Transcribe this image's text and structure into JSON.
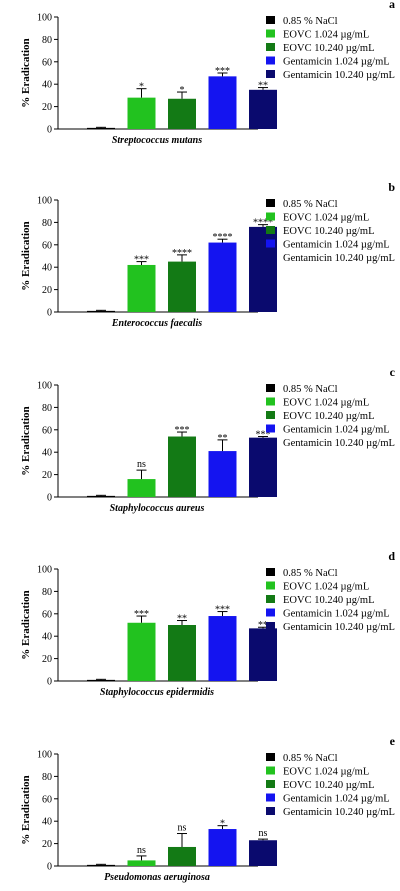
{
  "legend": [
    "0.85 % NaCl",
    "EOVC 1.024 µg/mL",
    "EOVC 10.240 µg/mL",
    "Gentamicin 1.024 µg/mL",
    "Gentamicin 10.240 µg/mL"
  ],
  "colors": [
    "#000000",
    "#22c21f",
    "#137a15",
    "#1414f0",
    "#0a0a6e"
  ],
  "y_axis_label": "% Eradication",
  "y_ticks": [
    0,
    20,
    40,
    60,
    80,
    100
  ],
  "chart_data": [
    {
      "type": "bar",
      "panel": "a",
      "xlabel": "Streptococcus mutans",
      "ylabel": "% Eradication",
      "ylim": [
        0,
        100
      ],
      "categories": [
        "0.85 % NaCl",
        "EOVC 1.024 µg/mL",
        "EOVC 10.240 µg/mL",
        "Gentamicin 1.024 µg/mL",
        "Gentamicin 10.240 µg/mL"
      ],
      "values": [
        1,
        28,
        27,
        47,
        35
      ],
      "errors": [
        0.5,
        8,
        6,
        3,
        2
      ],
      "significance": [
        "",
        "*",
        "*",
        "***",
        "**"
      ]
    },
    {
      "type": "bar",
      "panel": "b",
      "xlabel": "Enterococcus faecalis",
      "ylabel": "% Eradication",
      "ylim": [
        0,
        100
      ],
      "categories": [
        "0.85 % NaCl",
        "EOVC 1.024 µg/mL",
        "EOVC 10.240 µg/mL",
        "Gentamicin 1.024 µg/mL",
        "Gentamicin 10.240 µg/mL"
      ],
      "values": [
        1,
        42,
        45,
        62,
        76
      ],
      "errors": [
        0.5,
        3,
        6,
        3,
        2
      ],
      "significance": [
        "",
        "***",
        "****",
        "****",
        "****"
      ]
    },
    {
      "type": "bar",
      "panel": "c",
      "xlabel": "Staphylococcus aureus",
      "ylabel": "% Eradication",
      "ylim": [
        0,
        100
      ],
      "categories": [
        "0.85 % NaCl",
        "EOVC 1.024 µg/mL",
        "EOVC 10.240 µg/mL",
        "Gentamicin 1.024 µg/mL",
        "Gentamicin 10.240 µg/mL"
      ],
      "values": [
        1,
        16,
        54,
        41,
        53
      ],
      "errors": [
        0.5,
        8,
        4,
        10,
        1
      ],
      "significance": [
        "",
        "ns",
        "***",
        "**",
        "***"
      ]
    },
    {
      "type": "bar",
      "panel": "d",
      "xlabel": "Staphylococcus epidermidis",
      "ylabel": "% Eradication",
      "ylim": [
        0,
        100
      ],
      "categories": [
        "0.85 % NaCl",
        "EOVC 1.024 µg/mL",
        "EOVC 10.240 µg/mL",
        "Gentamicin 1.024 µg/mL",
        "Gentamicin 10.240 µg/mL"
      ],
      "values": [
        1,
        52,
        50,
        58,
        47
      ],
      "errors": [
        0.5,
        6,
        4,
        4,
        1
      ],
      "significance": [
        "",
        "***",
        "**",
        "***",
        "**"
      ]
    },
    {
      "type": "bar",
      "panel": "e",
      "xlabel": "Pseudomonas aeruginosa",
      "ylabel": "% Eradication",
      "ylim": [
        0,
        100
      ],
      "categories": [
        "0.85 % NaCl",
        "EOVC 1.024 µg/mL",
        "EOVC 10.240 µg/mL",
        "Gentamicin 1.024 µg/mL",
        "Gentamicin 10.240 µg/mL"
      ],
      "values": [
        1,
        5,
        17,
        33,
        23
      ],
      "errors": [
        0.5,
        4,
        12,
        3,
        1
      ],
      "significance": [
        "",
        "ns",
        "ns",
        "*",
        "ns"
      ]
    }
  ]
}
